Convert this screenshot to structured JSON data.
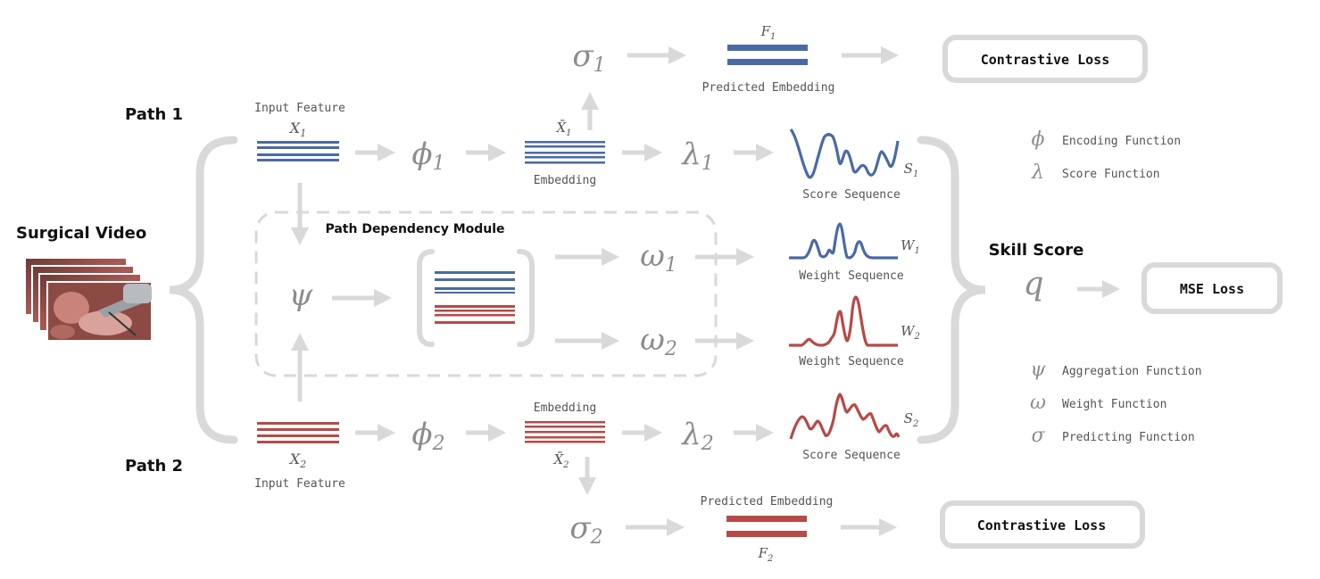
{
  "labels": {
    "path1": "Path 1",
    "path2": "Path 2",
    "surgical_video": "Surgical Video",
    "skill_score": "Skill Score",
    "path_dependency_module": "Path Dependency Module",
    "input_feature_top": "Input Feature",
    "input_feature_bottom": "Input Feature",
    "embedding_top": "Embedding",
    "embedding_bottom": "Embedding",
    "predicted_embedding_top": "Predicted Embedding",
    "predicted_embedding_bottom": "Predicted Embedding",
    "score_sequence_top": "Score Sequence",
    "score_sequence_bottom": "Score Sequence",
    "weight_sequence_1": "Weight Sequence",
    "weight_sequence_2": "Weight Sequence"
  },
  "symbols": {
    "x1": "X",
    "x1_sub": "1",
    "x2": "X",
    "x2_sub": "2",
    "xbar1": "X̄",
    "xbar1_sub": "1",
    "xbar2": "X̄",
    "xbar2_sub": "2",
    "phi1": "ϕ",
    "phi1_sub": "1",
    "phi2": "ϕ",
    "phi2_sub": "2",
    "lambda1": "λ",
    "lambda1_sub": "1",
    "lambda2": "λ",
    "lambda2_sub": "2",
    "sigma1": "σ",
    "sigma1_sub": "1",
    "sigma2": "σ",
    "sigma2_sub": "2",
    "omega1": "ω",
    "omega1_sub": "1",
    "omega2": "ω",
    "omega2_sub": "2",
    "psi": "ψ",
    "q": "q",
    "f1": "F",
    "f1_sub": "1",
    "f2": "F",
    "f2_sub": "2",
    "s1": "S",
    "s1_sub": "1",
    "s2": "S",
    "s2_sub": "2",
    "w1": "W",
    "w1_sub": "1",
    "w2": "W",
    "w2_sub": "2"
  },
  "boxes": {
    "contrastive_loss_top": "Contrastive Loss",
    "contrastive_loss_bottom": "Contrastive Loss",
    "mse_loss": "MSE Loss"
  },
  "legend": [
    {
      "symbol": "ϕ",
      "text": "Encoding Function"
    },
    {
      "symbol": "λ",
      "text": "Score Function"
    },
    {
      "symbol": "ψ",
      "text": "Aggregation Function"
    },
    {
      "symbol": "ω",
      "text": "Weight Function"
    },
    {
      "symbol": "σ",
      "text": "Predicting Function"
    }
  ],
  "colors": {
    "blue": "#4a6aa5",
    "red": "#b64a47",
    "gray": "#d9d9d9",
    "symbol_gray": "#8c8c8c",
    "label_gray": "#555555",
    "text_black": "#111111"
  }
}
